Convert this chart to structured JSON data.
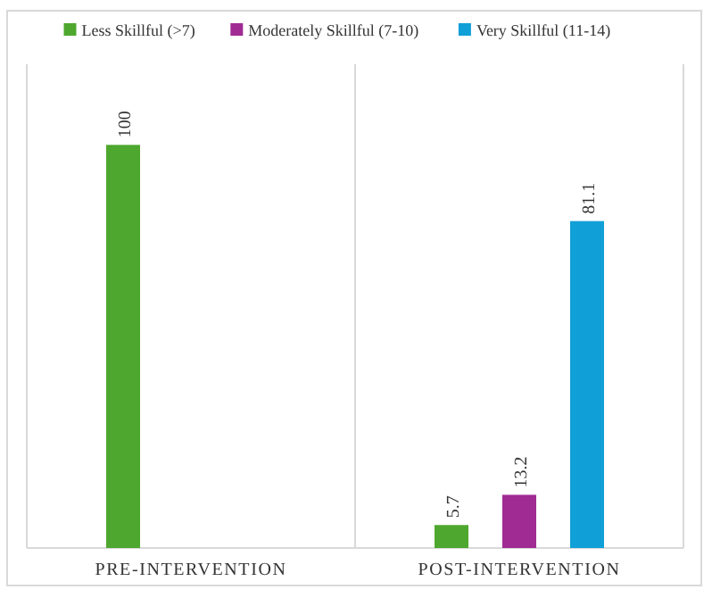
{
  "chart_data": {
    "type": "bar",
    "categories": [
      "PRE-INTERVENTION",
      "POST-INTERVENTION"
    ],
    "series": [
      {
        "name": "Less Skillful (>7)",
        "color": "#4ea72e",
        "values": [
          100,
          5.7
        ]
      },
      {
        "name": "Moderately Skillful (7-10)",
        "color": "#a02b93",
        "values": [
          null,
          13.2
        ]
      },
      {
        "name": "Very Skillful (11-14)",
        "color": "#119fd8",
        "values": [
          null,
          81.1
        ]
      }
    ],
    "data_labels": true,
    "legend": "top",
    "grid": "x"
  }
}
